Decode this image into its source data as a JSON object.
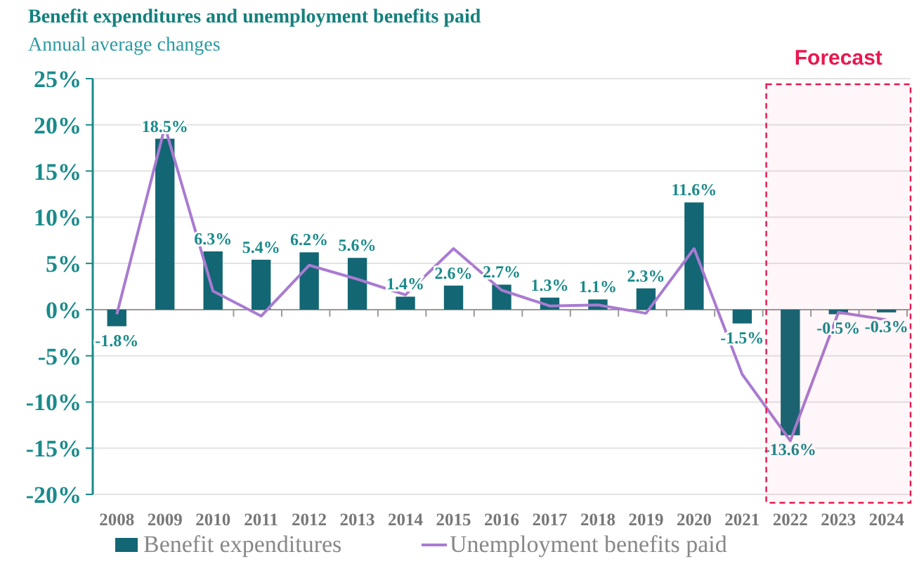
{
  "chart_data": {
    "type": "bar",
    "title": "Benefit expenditures and unemployment benefits paid",
    "subtitle": "Annual average changes",
    "categories": [
      "2008",
      "2009",
      "2010",
      "2011",
      "2012",
      "2013",
      "2014",
      "2015",
      "2016",
      "2017",
      "2018",
      "2019",
      "2020",
      "2021",
      "2022",
      "2023",
      "2024"
    ],
    "series": [
      {
        "name": "Benefit expenditures",
        "color": "#136673",
        "values": [
          -1.8,
          18.5,
          6.3,
          5.4,
          6.2,
          5.6,
          1.4,
          2.6,
          2.7,
          1.3,
          1.1,
          2.3,
          11.6,
          -1.5,
          -13.6,
          -0.5,
          -0.3
        ],
        "value_labels": [
          "-1.8%",
          "18.5%",
          "6.3%",
          "5.4%",
          "6.2%",
          "5.6%",
          "1.4%",
          "2.6%",
          "2.7%",
          "1.3%",
          "1.1%",
          "2.3%",
          "11.6%",
          "-1.5%",
          "-13.6%",
          "-0.5%",
          "-0.3%"
        ]
      },
      {
        "name": "Unemployment benefits paid",
        "type": "line",
        "color": "#a97bd1",
        "values": [
          -0.5,
          19.8,
          2.0,
          -0.7,
          4.8,
          3.3,
          1.6,
          6.6,
          2.1,
          0.4,
          0.5,
          -0.4,
          6.6,
          -7.0,
          -14.2,
          -0.3,
          -1.1
        ]
      }
    ],
    "ylim": [
      -20,
      25
    ],
    "yticks": [
      {
        "value": -20,
        "label": "-20%"
      },
      {
        "value": -15,
        "label": "-15%"
      },
      {
        "value": -10,
        "label": "-10%"
      },
      {
        "value": -5,
        "label": "-5%"
      },
      {
        "value": 0,
        "label": "0%"
      },
      {
        "value": 5,
        "label": "5%"
      },
      {
        "value": 10,
        "label": "10%"
      },
      {
        "value": 15,
        "label": "15%"
      },
      {
        "value": 20,
        "label": "20%"
      },
      {
        "value": 25,
        "label": "25%"
      }
    ],
    "grid": "y",
    "legend": "bottom",
    "bands": [
      {
        "axis": "x",
        "from": "2022",
        "to": "2024",
        "label": "Forecast",
        "color": "#e8174f"
      }
    ]
  }
}
